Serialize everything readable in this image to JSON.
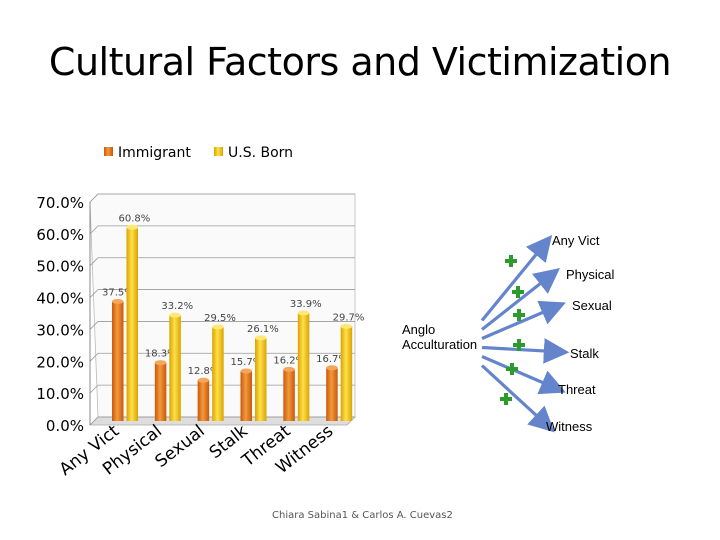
{
  "title": "Cultural Factors and Victimization",
  "chart_data": {
    "type": "bar",
    "categories": [
      "Any Vict",
      "Physical",
      "Sexual",
      "Stalk",
      "Threat",
      "Witness"
    ],
    "series": [
      {
        "name": "Immigrant",
        "values": [
          37.5,
          18.3,
          12.8,
          15.7,
          16.2,
          16.7
        ],
        "labels": [
          "37.5%",
          "18.3%",
          "12.8%",
          "15.7%",
          "16.2%",
          "16.7%"
        ],
        "color": "#e8771a"
      },
      {
        "name": "U.S. Born",
        "values": [
          60.8,
          33.2,
          29.5,
          26.1,
          33.9,
          29.7
        ],
        "labels": [
          "60.8%",
          "33.2%",
          "29.5%",
          "26.1%",
          "33.9%",
          "29.7%"
        ],
        "color": "#f2c200"
      }
    ],
    "yticks": [
      "0.0%",
      "10.0%",
      "20.0%",
      "30.0%",
      "40.0%",
      "50.0%",
      "60.0%",
      "70.0%"
    ],
    "ylim": [
      0,
      70
    ],
    "legend": "top",
    "grid": true
  },
  "diagram": {
    "source_label": "Anglo Acculturation",
    "targets": [
      "Any Vict",
      "Physical",
      "Sexual",
      "Stalk",
      "Threat",
      "Witness"
    ],
    "arrow_color": "#4a6fc4",
    "plus_color": "#2d9a2d"
  },
  "footer": "Chiara Sabina1 & Carlos A. Cuevas2"
}
